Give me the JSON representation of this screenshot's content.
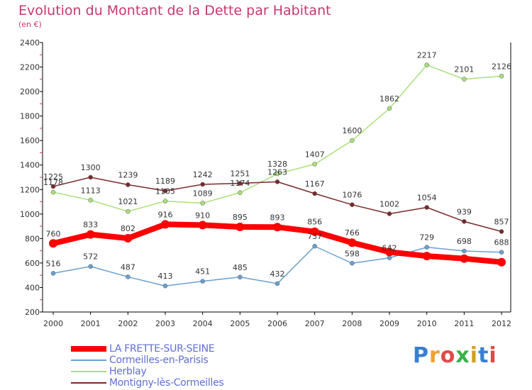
{
  "title": "Evolution du Montant de la Dette par Habitant",
  "subtitle": "(en €)",
  "logo_text": "Proxiti",
  "chart_data": {
    "type": "line",
    "title": "Evolution du Montant de la Dette par Habitant",
    "subtitle": "(en €)",
    "x": [
      "2000",
      "2001",
      "2002",
      "2003",
      "2004",
      "2005",
      "2006",
      "2007",
      "2008",
      "2009",
      "2010",
      "2011",
      "2012"
    ],
    "y_ticks": [
      "200",
      "400",
      "600",
      "800",
      "1000",
      "1200",
      "1400",
      "1600",
      "1800",
      "2000",
      "2200",
      "2400"
    ],
    "ylim": [
      200,
      2400
    ],
    "grid": false,
    "legend": "bottom-left",
    "series": [
      {
        "name": "LA FRETTE-SUR-SEINE",
        "color": "#ff0000",
        "values": [
          760,
          833,
          802,
          916,
          910,
          895,
          893,
          856,
          766,
          690,
          657,
          636,
          607
        ],
        "labels": [
          "760",
          "833",
          "802",
          "916",
          "910",
          "895",
          "893",
          "856",
          "766",
          "",
          "",
          "",
          ""
        ]
      },
      {
        "name": "Cormeilles-en-Parisis",
        "color": "#6aa0d0",
        "values": [
          516,
          572,
          487,
          413,
          451,
          485,
          432,
          737,
          598,
          642,
          729,
          698,
          688
        ],
        "labels": [
          "516",
          "572",
          "487",
          "413",
          "451",
          "485",
          "432",
          "737",
          "598",
          "642",
          "729",
          "698",
          "688"
        ]
      },
      {
        "name": "Herblay",
        "color": "#a8e07a",
        "values": [
          1178,
          1113,
          1021,
          1105,
          1089,
          1174,
          1328,
          1407,
          1600,
          1862,
          2217,
          2101,
          2126
        ],
        "labels": [
          "1178",
          "1113",
          "1021",
          "1105",
          "1089",
          "1174",
          "1328",
          "1407",
          "1600",
          "1862",
          "2217",
          "2101",
          "2126"
        ]
      },
      {
        "name": "Montigny-lès-Cormeilles",
        "color": "#7a2a2a",
        "values": [
          1225,
          1300,
          1239,
          1189,
          1242,
          1251,
          1263,
          1167,
          1076,
          1002,
          1054,
          939,
          857
        ],
        "labels": [
          "1225",
          "1300",
          "1239",
          "1189",
          "1242",
          "1251",
          "1263",
          "1167",
          "1076",
          "1002",
          "1054",
          "939",
          "857"
        ]
      }
    ]
  }
}
